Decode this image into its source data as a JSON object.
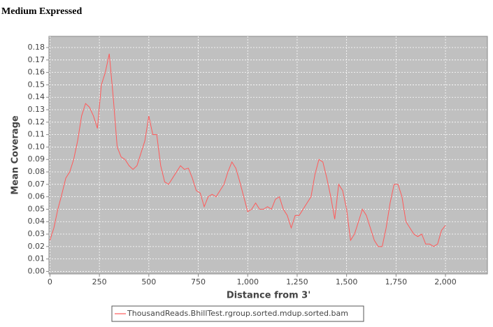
{
  "chart_data": {
    "type": "line",
    "title": "Medium Expressed",
    "x_label": "Distance from 3'",
    "y_label": "Mean Coverage",
    "x": [
      0,
      20,
      40,
      60,
      80,
      100,
      120,
      140,
      160,
      180,
      200,
      220,
      240,
      260,
      280,
      300,
      320,
      340,
      360,
      380,
      400,
      420,
      440,
      460,
      480,
      500,
      520,
      540,
      560,
      580,
      600,
      620,
      640,
      660,
      680,
      700,
      720,
      740,
      760,
      780,
      800,
      820,
      840,
      860,
      880,
      900,
      920,
      940,
      960,
      980,
      1000,
      1020,
      1040,
      1060,
      1080,
      1100,
      1120,
      1140,
      1160,
      1180,
      1200,
      1220,
      1240,
      1260,
      1280,
      1300,
      1320,
      1340,
      1360,
      1380,
      1400,
      1420,
      1440,
      1460,
      1480,
      1500,
      1520,
      1540,
      1560,
      1580,
      1600,
      1620,
      1640,
      1660,
      1680,
      1700,
      1720,
      1740,
      1760,
      1780,
      1800,
      1820,
      1840,
      1860,
      1880,
      1900,
      1920,
      1940,
      1960,
      1980,
      2000
    ],
    "series": [
      {
        "name": "ThousandReads.BhillTest.rgroup.sorted.mdup.sorted.bam",
        "color": "#ff5a5a",
        "values": [
          0.025,
          0.035,
          0.05,
          0.062,
          0.075,
          0.08,
          0.09,
          0.105,
          0.125,
          0.135,
          0.132,
          0.125,
          0.115,
          0.15,
          0.16,
          0.175,
          0.14,
          0.1,
          0.092,
          0.09,
          0.085,
          0.082,
          0.085,
          0.095,
          0.105,
          0.125,
          0.11,
          0.11,
          0.085,
          0.072,
          0.07,
          0.075,
          0.08,
          0.085,
          0.082,
          0.083,
          0.075,
          0.065,
          0.063,
          0.052,
          0.06,
          0.062,
          0.06,
          0.065,
          0.07,
          0.08,
          0.088,
          0.083,
          0.072,
          0.06,
          0.048,
          0.05,
          0.055,
          0.05,
          0.05,
          0.052,
          0.05,
          0.058,
          0.06,
          0.05,
          0.045,
          0.035,
          0.045,
          0.045,
          0.05,
          0.055,
          0.06,
          0.078,
          0.09,
          0.088,
          0.075,
          0.06,
          0.042,
          0.07,
          0.065,
          0.05,
          0.025,
          0.03,
          0.04,
          0.05,
          0.045,
          0.035,
          0.025,
          0.02,
          0.02,
          0.035,
          0.055,
          0.07,
          0.07,
          0.06,
          0.04,
          0.035,
          0.03,
          0.028,
          0.03,
          0.022,
          0.022,
          0.02,
          0.022,
          0.033,
          0.037
        ]
      }
    ],
    "xlim": [
      -5,
      2212
    ],
    "ylim": [
      -0.002,
      0.189
    ],
    "xticks": [
      0,
      250,
      500,
      750,
      {
        "value": 1000,
        "label": "1,000"
      },
      {
        "value": 1250,
        "label": "1,250"
      },
      {
        "value": 1500,
        "label": "1,500"
      },
      {
        "value": 1750,
        "label": "1,750"
      },
      {
        "value": 2000,
        "label": "2,000"
      }
    ],
    "yticks": [
      {
        "value": 0,
        "label": "0.00"
      },
      {
        "value": 0.01,
        "label": "0.01"
      },
      {
        "value": 0.02,
        "label": "0.02"
      },
      {
        "value": 0.03,
        "label": "0.03"
      },
      {
        "value": 0.04,
        "label": "0.04"
      },
      {
        "value": 0.05,
        "label": "0.05"
      },
      {
        "value": 0.06,
        "label": "0.06"
      },
      {
        "value": 0.07,
        "label": "0.07"
      },
      {
        "value": 0.08,
        "label": "0.08"
      },
      {
        "value": 0.09,
        "label": "0.09"
      },
      {
        "value": 0.1,
        "label": "0.10"
      },
      {
        "value": 0.11,
        "label": "0.11"
      },
      {
        "value": 0.12,
        "label": "0.12"
      },
      {
        "value": 0.13,
        "label": "0.13"
      },
      {
        "value": 0.14,
        "label": "0.14"
      },
      {
        "value": 0.15,
        "label": "0.15"
      },
      {
        "value": 0.16,
        "label": "0.16"
      },
      {
        "value": 0.17,
        "label": "0.17"
      },
      {
        "value": 0.18,
        "label": "0.18"
      }
    ],
    "grid": true
  }
}
